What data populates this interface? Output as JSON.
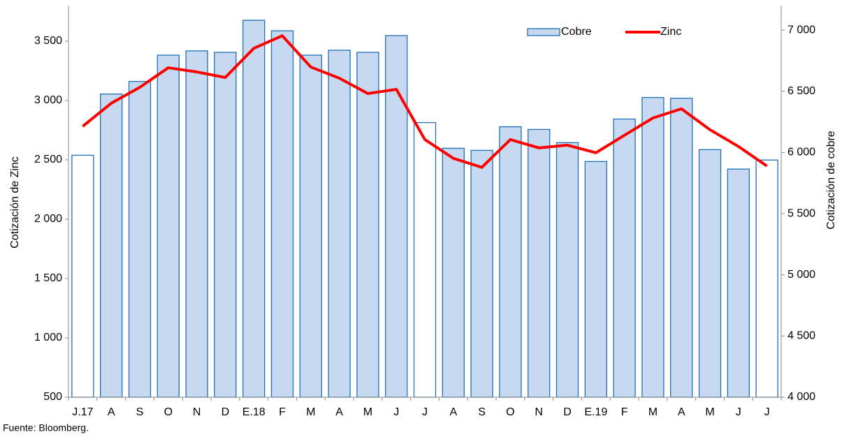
{
  "chart_data": {
    "type": "bar-line",
    "y_label": "Cotización de Zinc",
    "y2_label": "Cotización de cobre",
    "source": "Fuente: Bloomberg.",
    "categories": [
      "J.17",
      "A",
      "S",
      "O",
      "N",
      "D",
      "E.18",
      "F",
      "M",
      "A",
      "M",
      "J",
      "J",
      "A",
      "S",
      "O",
      "N",
      "D",
      "E.19",
      "F",
      "M",
      "A",
      "M",
      "J",
      "J"
    ],
    "series": [
      {
        "name": "Cobre",
        "type": "bar",
        "axis": "y2",
        "color": "#c6d9f0",
        "edge_color": "#1f6fb4",
        "colors": [
          "#ffffff",
          "#c6d9f0",
          "#c6d9f0",
          "#c6d9f0",
          "#c6d9f0",
          "#c6d9f0",
          "#c6d9f0",
          "#c6d9f0",
          "#c6d9f0",
          "#c6d9f0",
          "#c6d9f0",
          "#c6d9f0",
          "#ffffff",
          "#c6d9f0",
          "#c6d9f0",
          "#c6d9f0",
          "#c6d9f0",
          "#c6d9f0",
          "#c6d9f0",
          "#c6d9f0",
          "#c6d9f0",
          "#c6d9f0",
          "#c6d9f0",
          "#c6d9f0",
          "#ffffff"
        ],
        "values": [
          5977,
          6477,
          6580,
          6795,
          6830,
          6818,
          7080,
          6994,
          6795,
          6835,
          6818,
          6955,
          6244,
          6034,
          6017,
          6210,
          6188,
          6080,
          5926,
          6273,
          6449,
          6443,
          6023,
          5864,
          5938
        ]
      },
      {
        "name": "Zinc",
        "type": "line",
        "color": "#ff0000",
        "values": [
          2783,
          2977,
          3111,
          3276,
          3241,
          3194,
          3440,
          3546,
          3282,
          3188,
          3059,
          3094,
          2671,
          2513,
          2437,
          2671,
          2601,
          2624,
          2560,
          2707,
          2853,
          2930,
          2754,
          2613,
          2448
        ]
      }
    ],
    "ylim": [
      500,
      3800
    ],
    "yticks": [
      500,
      {
        "value": 1000,
        "label": "1 000"
      },
      {
        "value": 1500,
        "label": "1 500"
      },
      {
        "value": 2000,
        "label": "2 000"
      },
      {
        "value": 2500,
        "label": "2 500"
      },
      {
        "value": 3000,
        "label": "3 000"
      },
      {
        "value": 3500,
        "label": "3 500"
      }
    ],
    "y2lim": [
      4000,
      7200
    ],
    "y2ticks": [
      {
        "value": 4000,
        "label": "4 000"
      },
      {
        "value": 4500,
        "label": "4 500"
      },
      {
        "value": 5000,
        "label": "5 000"
      },
      {
        "value": 5500,
        "label": "5 500"
      },
      {
        "value": 6000,
        "label": "6 000"
      },
      {
        "value": 6500,
        "label": "6 500"
      },
      {
        "value": 7000,
        "label": "7 000"
      }
    ],
    "legend": "top-right"
  }
}
